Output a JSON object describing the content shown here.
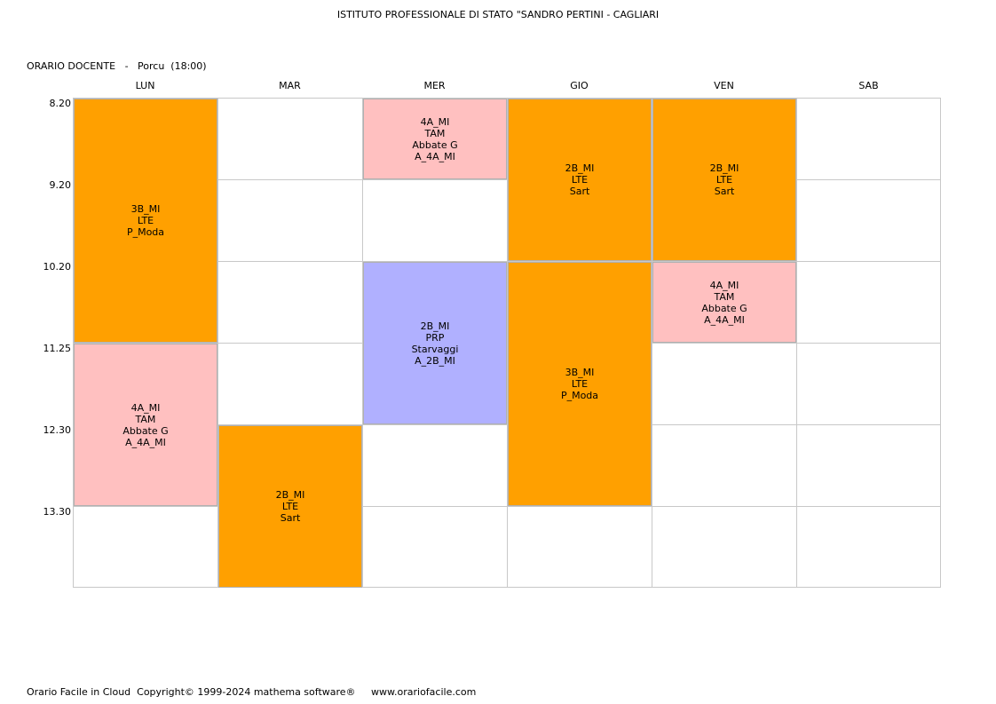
{
  "header": {
    "school": "ISTITUTO PROFESSIONALE DI STATO \"SANDRO PERTINI - CAGLIARI",
    "teacher_line": "ORARIO DOCENTE   -   Porcu  (18:00)"
  },
  "days": [
    "LUN",
    "MAR",
    "MER",
    "GIO",
    "VEN",
    "SAB"
  ],
  "times": [
    "8.20",
    "9.20",
    "10.20",
    "11.25",
    "12.30",
    "13.30"
  ],
  "colors": {
    "LTE": "#ffa000",
    "TAM": "#ffc0c0",
    "PRP": "#b0b0ff"
  },
  "lessons": [
    {
      "day": 0,
      "start": 0,
      "span": 3,
      "color": "#ffa000",
      "lines": [
        "3B_MI",
        "LTE",
        "P_Moda"
      ]
    },
    {
      "day": 0,
      "start": 3,
      "span": 2,
      "color": "#ffc0c0",
      "lines": [
        "4A_MI",
        "TAM",
        "Abbate G",
        "A_4A_MI"
      ]
    },
    {
      "day": 1,
      "start": 4,
      "span": 2,
      "color": "#ffa000",
      "lines": [
        "2B_MI",
        "LTE",
        "Sart"
      ]
    },
    {
      "day": 2,
      "start": 0,
      "span": 1,
      "color": "#ffc0c0",
      "lines": [
        "4A_MI",
        "TAM",
        "Abbate G",
        "A_4A_MI"
      ]
    },
    {
      "day": 2,
      "start": 2,
      "span": 2,
      "color": "#b0b0ff",
      "lines": [
        "2B_MI",
        "PRP",
        "Starvaggi",
        "A_2B_MI"
      ]
    },
    {
      "day": 3,
      "start": 0,
      "span": 2,
      "color": "#ffa000",
      "lines": [
        "2B_MI",
        "LTE",
        "Sart"
      ]
    },
    {
      "day": 3,
      "start": 2,
      "span": 3,
      "color": "#ffa000",
      "lines": [
        "3B_MI",
        "LTE",
        "P_Moda"
      ]
    },
    {
      "day": 4,
      "start": 0,
      "span": 2,
      "color": "#ffa000",
      "lines": [
        "2B_MI",
        "LTE",
        "Sart"
      ]
    },
    {
      "day": 4,
      "start": 2,
      "span": 1,
      "color": "#ffc0c0",
      "lines": [
        "4A_MI",
        "TAM",
        "Abbate G",
        "A_4A_MI"
      ]
    }
  ],
  "footer": "Orario Facile in Cloud  Copyright© 1999-2024 mathema software®     www.orariofacile.com"
}
